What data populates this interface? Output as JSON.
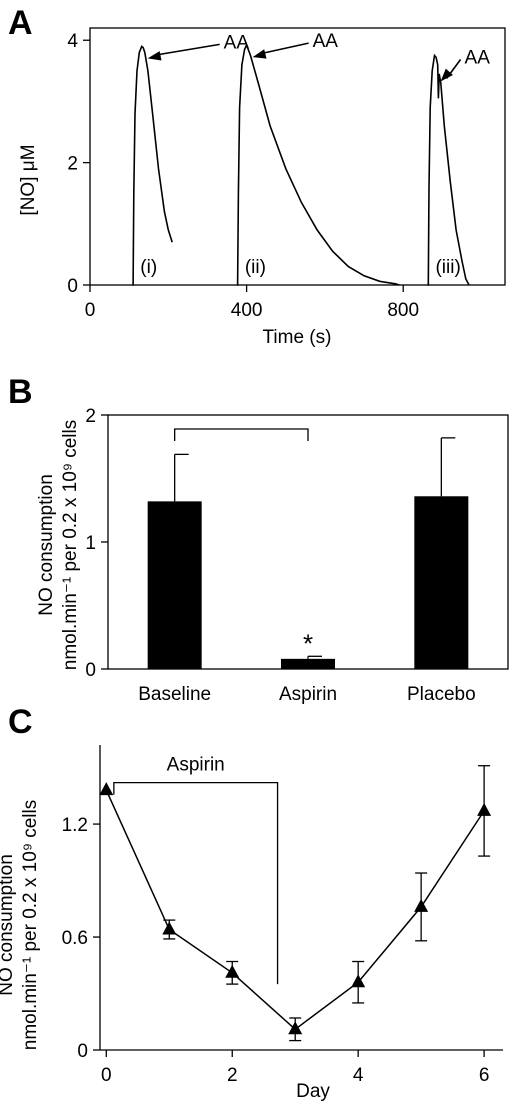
{
  "chart_data": [
    {
      "panel": "A",
      "type": "line",
      "xlabel": "Time (s)",
      "ylabel": "[NO] μM",
      "xlim": [
        0,
        1060
      ],
      "ylim": [
        0,
        4.2
      ],
      "xticks": [
        "0",
        "400",
        "800"
      ],
      "yticks": [
        "0",
        "2",
        "4"
      ],
      "series": [
        {
          "x": [
            108,
            110,
            112,
            115,
            120,
            126,
            132,
            136,
            140,
            148,
            160,
            175,
            190,
            200,
            210
          ],
          "y": [
            0.0,
            0.0,
            1.5,
            2.8,
            3.5,
            3.8,
            3.9,
            3.88,
            3.8,
            3.5,
            2.8,
            1.9,
            1.2,
            0.9,
            0.7
          ]
        },
        {
          "x": [
            375,
            377,
            379,
            382,
            388,
            395,
            400,
            410,
            430,
            460,
            500,
            540,
            580,
            620,
            660,
            700,
            740,
            780,
            790
          ],
          "y": [
            0.0,
            0.0,
            1.5,
            2.9,
            3.6,
            3.85,
            3.92,
            3.75,
            3.3,
            2.6,
            1.9,
            1.35,
            0.9,
            0.55,
            0.3,
            0.15,
            0.06,
            0.02,
            0.0
          ]
        },
        {
          "x": [
            862,
            864,
            866,
            869,
            874,
            880,
            884,
            888,
            890,
            892,
            896,
            905,
            920,
            935,
            950,
            960,
            968
          ],
          "y": [
            0.0,
            0.0,
            1.6,
            2.9,
            3.5,
            3.75,
            3.72,
            3.6,
            3.05,
            3.45,
            3.3,
            2.6,
            1.7,
            0.9,
            0.4,
            0.1,
            0.0
          ]
        }
      ],
      "annotations": [
        {
          "text": "AA",
          "series": 0
        },
        {
          "text": "AA",
          "series": 1
        },
        {
          "text": "AA",
          "series": 2
        },
        {
          "text": "(i)",
          "series": 0
        },
        {
          "text": "(ii)",
          "series": 1
        },
        {
          "text": "(iii)",
          "series": 2
        }
      ]
    },
    {
      "panel": "B",
      "type": "bar",
      "categories": [
        "Baseline",
        "Aspirin",
        "Placebo"
      ],
      "values": [
        1.32,
        0.08,
        1.36
      ],
      "errors": [
        0.37,
        0.02,
        0.46
      ],
      "ylabel_line1": "NO consumption",
      "ylabel_line2": "nmol.min⁻¹ per 0.2 x 10⁹ cells",
      "ylim": [
        0,
        2
      ],
      "yticks": [
        "0",
        "1",
        "2"
      ],
      "significance": "*",
      "bar_color": "#000000"
    },
    {
      "panel": "C",
      "type": "line",
      "x": [
        0,
        1,
        2,
        3,
        4,
        5,
        6
      ],
      "y": [
        1.38,
        0.64,
        0.41,
        0.11,
        0.36,
        0.76,
        1.27
      ],
      "errors": [
        0.0,
        0.05,
        0.06,
        0.06,
        0.11,
        0.18,
        0.24
      ],
      "xlabel": "Day",
      "ylabel_line1": "NO consumption",
      "ylabel_line2": "nmol.min⁻¹ per 0.2 x 10⁹ cells",
      "xlim": [
        -0.1,
        6.3
      ],
      "ylim": [
        0,
        1.62
      ],
      "xticks": [
        "0",
        "2",
        "4",
        "6"
      ],
      "yticks": [
        "0",
        "0.6",
        "1.2"
      ],
      "bracket_label": "Aspirin",
      "marker": "triangle"
    }
  ],
  "panels": {
    "a_letter": "A",
    "b_letter": "B",
    "c_letter": "C"
  }
}
